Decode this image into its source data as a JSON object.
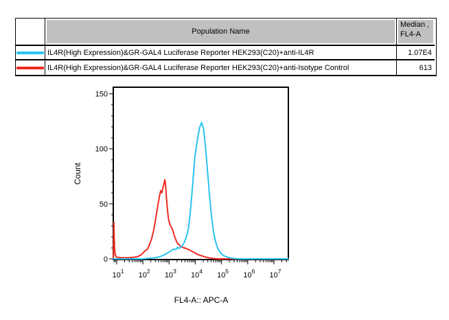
{
  "table": {
    "columns": {
      "population": "Population Name",
      "median_line1": "Median ,",
      "median_line2": "FL4-A"
    },
    "rows": [
      {
        "swatch_color": "#29C3F0",
        "swatch_name": "cyan-line-swatch",
        "population": "IL4R(High Expression)&GR-GAL4 Luciferase Reporter HEK293(C20)+anti-IL4R",
        "median": "1.07E4"
      },
      {
        "swatch_color": "#EF2A21",
        "swatch_name": "red-line-swatch",
        "population": "IL4R(High Expression)&GR-GAL4 Luciferase Reporter HEK293(C20)+anti-Isotype Control",
        "median": "613"
      }
    ]
  },
  "chart_data": {
    "type": "line",
    "subtype": "flow-cytometry-histogram",
    "title": "",
    "xlabel": "FL4-A:: APC-A",
    "ylabel": "Count",
    "x_scale": "log10",
    "xlim_log10": [
      0.87,
      7.55
    ],
    "x_major_decades": [
      1,
      2,
      3,
      4,
      5,
      6,
      7
    ],
    "x_tick_base": "10",
    "ylim": [
      0,
      156
    ],
    "y_major_ticks": [
      0,
      50,
      100,
      150
    ],
    "y_minor_step": 10,
    "grid": false,
    "legend_position": "none",
    "series": [
      {
        "name": "IL4R(High Expression)&GR-GAL4 Luciferase Reporter HEK293(C20)+anti-IL4R",
        "color": "#29C3F0",
        "median_fl4a": "1.07E4",
        "peak": {
          "x_log10": 4.24,
          "count": 124
        },
        "points_log10_count": [
          [
            0.872,
            0
          ],
          [
            2.0,
            0
          ],
          [
            2.2,
            0.5
          ],
          [
            2.45,
            1
          ],
          [
            2.65,
            2
          ],
          [
            2.8,
            3.5
          ],
          [
            2.95,
            5.5
          ],
          [
            3.05,
            7
          ],
          [
            3.14,
            8.5
          ],
          [
            3.2,
            9
          ],
          [
            3.26,
            8.5
          ],
          [
            3.32,
            10.5
          ],
          [
            3.38,
            9.5
          ],
          [
            3.46,
            11
          ],
          [
            3.56,
            14
          ],
          [
            3.66,
            20
          ],
          [
            3.74,
            28
          ],
          [
            3.82,
            45
          ],
          [
            3.9,
            68
          ],
          [
            3.98,
            92
          ],
          [
            4.08,
            108
          ],
          [
            4.16,
            119
          ],
          [
            4.24,
            124
          ],
          [
            4.31,
            119
          ],
          [
            4.38,
            104
          ],
          [
            4.46,
            82
          ],
          [
            4.54,
            58
          ],
          [
            4.62,
            38
          ],
          [
            4.7,
            24
          ],
          [
            4.78,
            15
          ],
          [
            4.86,
            9.5
          ],
          [
            4.96,
            5.5
          ],
          [
            5.08,
            3
          ],
          [
            5.2,
            1.8
          ],
          [
            5.35,
            0.8
          ],
          [
            5.5,
            0.3
          ],
          [
            5.65,
            0
          ],
          [
            7.55,
            0
          ]
        ]
      },
      {
        "name": "IL4R(High Expression)&GR-GAL4 Luciferase Reporter HEK293(C20)+anti-Isotype Control",
        "color": "#EF2A21",
        "median_fl4a": "613",
        "peak": {
          "x_log10": 2.84,
          "count": 72
        },
        "points_log10_count": [
          [
            0.872,
            0
          ],
          [
            0.883,
            14
          ],
          [
            0.893,
            33
          ],
          [
            0.905,
            22
          ],
          [
            0.92,
            9
          ],
          [
            0.95,
            3
          ],
          [
            1.0,
            1.5
          ],
          [
            1.2,
            1
          ],
          [
            1.45,
            1
          ],
          [
            1.65,
            1.5
          ],
          [
            1.8,
            2
          ],
          [
            1.95,
            4
          ],
          [
            2.05,
            6.5
          ],
          [
            2.12,
            8
          ],
          [
            2.18,
            9
          ],
          [
            2.25,
            13
          ],
          [
            2.33,
            18
          ],
          [
            2.42,
            27
          ],
          [
            2.5,
            38
          ],
          [
            2.58,
            50
          ],
          [
            2.64,
            58
          ],
          [
            2.68,
            62
          ],
          [
            2.72,
            60
          ],
          [
            2.76,
            64
          ],
          [
            2.8,
            68
          ],
          [
            2.84,
            72
          ],
          [
            2.87,
            66
          ],
          [
            2.9,
            55
          ],
          [
            2.94,
            44
          ],
          [
            2.98,
            36
          ],
          [
            3.03,
            31
          ],
          [
            3.08,
            29
          ],
          [
            3.14,
            26
          ],
          [
            3.2,
            21
          ],
          [
            3.28,
            16
          ],
          [
            3.36,
            13
          ],
          [
            3.46,
            11
          ],
          [
            3.58,
            10
          ],
          [
            3.7,
            9
          ],
          [
            3.82,
            7.5
          ],
          [
            3.94,
            6
          ],
          [
            4.05,
            4.5
          ],
          [
            4.15,
            3.5
          ],
          [
            4.28,
            2.5
          ],
          [
            4.42,
            1.5
          ],
          [
            4.55,
            0.8
          ],
          [
            4.7,
            0.3
          ],
          [
            4.85,
            0
          ],
          [
            7.55,
            0
          ]
        ]
      }
    ]
  }
}
